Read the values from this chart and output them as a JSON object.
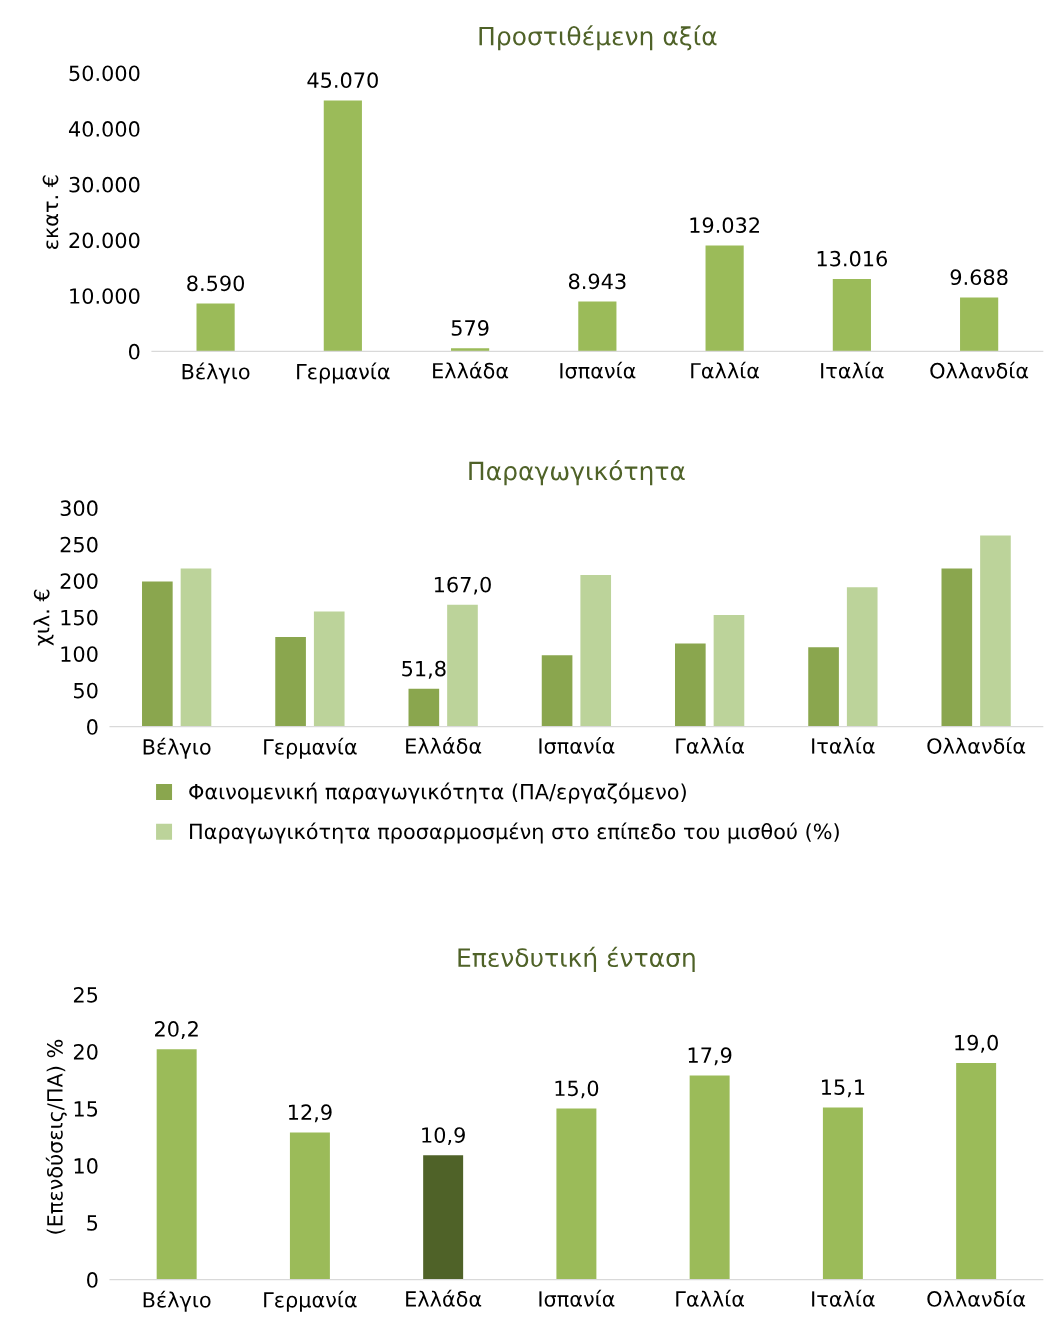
{
  "chart_data": [
    {
      "type": "bar",
      "title": "Προστιθέμενη αξία",
      "ylabel": "εκατ. €",
      "categories": [
        "Βέλγιο",
        "Γερμανία",
        "Ελλάδα",
        "Ισπανία",
        "Γαλλία",
        "Ιταλία",
        "Ολλανδία"
      ],
      "values": [
        8590,
        45070,
        579,
        8943,
        19032,
        13016,
        9688
      ],
      "value_labels": [
        "8.590",
        "45.070",
        "579",
        "8.943",
        "19.032",
        "13.016",
        "9.688"
      ],
      "color": "#9bbb59",
      "ylim": [
        0,
        50000
      ],
      "yticks": [
        {
          "value": 0,
          "label": "0"
        },
        {
          "value": 10000,
          "label": "10.000"
        },
        {
          "value": 20000,
          "label": "20.000"
        },
        {
          "value": 30000,
          "label": "30.000"
        },
        {
          "value": 40000,
          "label": "40.000"
        },
        {
          "value": 50000,
          "label": "50.000"
        }
      ],
      "grid": false
    },
    {
      "type": "bar",
      "title": "Παραγωγικότητα",
      "ylabel": "χιλ. €",
      "categories": [
        "Βέλγιο",
        "Γερμανία",
        "Ελλάδα",
        "Ισπανία",
        "Γαλλία",
        "Ιταλία",
        "Ολλανδία"
      ],
      "series": [
        {
          "name": "Φαινομενική παραγωγικότητα (ΠΑ/εργαζόμενο)",
          "color": "#8aa64e",
          "values": [
            199,
            123,
            51.8,
            98,
            114,
            109,
            217
          ],
          "value_labels": [
            null,
            null,
            "51,8",
            null,
            null,
            null,
            null
          ]
        },
        {
          "name": "Παραγωγικότητα προσαρμοσμένη στο επίπεδο του μισθού (%)",
          "color": "#bcd39a",
          "values": [
            217,
            158,
            167.0,
            208,
            153,
            191,
            262
          ],
          "value_labels": [
            null,
            null,
            "167,0",
            null,
            null,
            null,
            null
          ]
        }
      ],
      "ylim": [
        0,
        300
      ],
      "yticks": [
        0,
        50,
        100,
        150,
        200,
        250,
        300
      ],
      "grid": false,
      "legend": "bottom"
    },
    {
      "type": "bar",
      "title": "Επενδυτική ένταση",
      "ylabel": "(Επενδύσεις/ΠΑ) %",
      "categories": [
        "Βέλγιο",
        "Γερμανία",
        "Ελλάδα",
        "Ισπανία",
        "Γαλλία",
        "Ιταλία",
        "Ολλανδία"
      ],
      "values": [
        20.2,
        12.9,
        10.9,
        15.0,
        17.9,
        15.1,
        19.0
      ],
      "value_labels": [
        "20,2",
        "12,9",
        "10,9",
        "15,0",
        "17,9",
        "15,1",
        "19,0"
      ],
      "colors": [
        "#9bbb59",
        "#9bbb59",
        "#4f6228",
        "#9bbb59",
        "#9bbb59",
        "#9bbb59",
        "#9bbb59"
      ],
      "ylim": [
        0,
        25
      ],
      "yticks": [
        0,
        5,
        10,
        15,
        20,
        25
      ],
      "grid": false
    }
  ]
}
